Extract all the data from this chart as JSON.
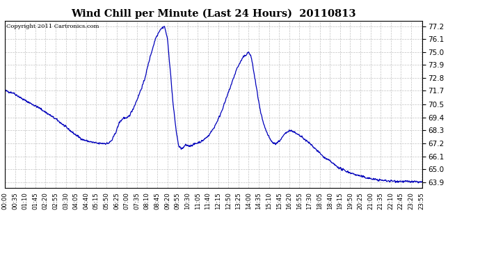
{
  "title": "Wind Chill per Minute (Last 24 Hours)  20110813",
  "copyright_text": "Copyright 2011 Cartronics.com",
  "line_color": "#0000bb",
  "background_color": "#ffffff",
  "grid_color": "#bbbbbb",
  "y_ticks": [
    63.9,
    65.0,
    66.1,
    67.2,
    68.3,
    69.4,
    70.5,
    71.7,
    72.8,
    73.9,
    75.0,
    76.1,
    77.2
  ],
  "y_min": 63.4,
  "y_max": 77.65,
  "x_labels": [
    "00:00",
    "00:35",
    "01:10",
    "01:45",
    "02:20",
    "02:55",
    "03:30",
    "04:05",
    "04:40",
    "05:15",
    "05:50",
    "06:25",
    "07:00",
    "07:35",
    "08:10",
    "08:45",
    "09:20",
    "09:55",
    "10:30",
    "11:05",
    "11:40",
    "12:15",
    "12:50",
    "13:25",
    "14:00",
    "14:35",
    "15:10",
    "15:45",
    "16:20",
    "16:55",
    "17:30",
    "18:05",
    "18:40",
    "19:15",
    "19:50",
    "20:25",
    "21:00",
    "21:35",
    "22:10",
    "22:45",
    "23:20",
    "23:55"
  ],
  "num_points": 1440,
  "ctrl_x": [
    0,
    30,
    60,
    120,
    180,
    240,
    270,
    300,
    320,
    340,
    355,
    360,
    370,
    385,
    395,
    410,
    420,
    430,
    445,
    460,
    480,
    500,
    520,
    535,
    545,
    550,
    560,
    570,
    580,
    592,
    600,
    610,
    615,
    620,
    625,
    632,
    640,
    650,
    660,
    680,
    700,
    720,
    740,
    760,
    780,
    800,
    820,
    835,
    840,
    850,
    860,
    870,
    880,
    892,
    905,
    915,
    922,
    928,
    935,
    950,
    965,
    978,
    992,
    1005,
    1020,
    1040,
    1060,
    1080,
    1100,
    1120,
    1140,
    1160,
    1200,
    1240,
    1280,
    1320,
    1380,
    1439
  ],
  "ctrl_y": [
    71.7,
    71.5,
    71.0,
    70.2,
    69.2,
    68.0,
    67.5,
    67.3,
    67.2,
    67.2,
    67.2,
    67.25,
    67.5,
    68.3,
    69.0,
    69.4,
    69.3,
    69.6,
    70.3,
    71.2,
    72.5,
    74.5,
    76.2,
    76.9,
    77.1,
    77.2,
    76.2,
    73.5,
    70.5,
    68.0,
    66.9,
    66.75,
    66.8,
    67.0,
    67.05,
    67.0,
    67.0,
    67.1,
    67.2,
    67.4,
    67.8,
    68.5,
    69.5,
    70.8,
    72.2,
    73.6,
    74.5,
    74.85,
    75.0,
    74.5,
    73.0,
    71.5,
    70.0,
    68.8,
    68.0,
    67.5,
    67.3,
    67.2,
    67.2,
    67.5,
    68.0,
    68.3,
    68.25,
    68.0,
    67.8,
    67.4,
    67.0,
    66.5,
    66.0,
    65.7,
    65.3,
    65.0,
    64.6,
    64.3,
    64.1,
    64.0,
    63.95,
    63.9
  ]
}
